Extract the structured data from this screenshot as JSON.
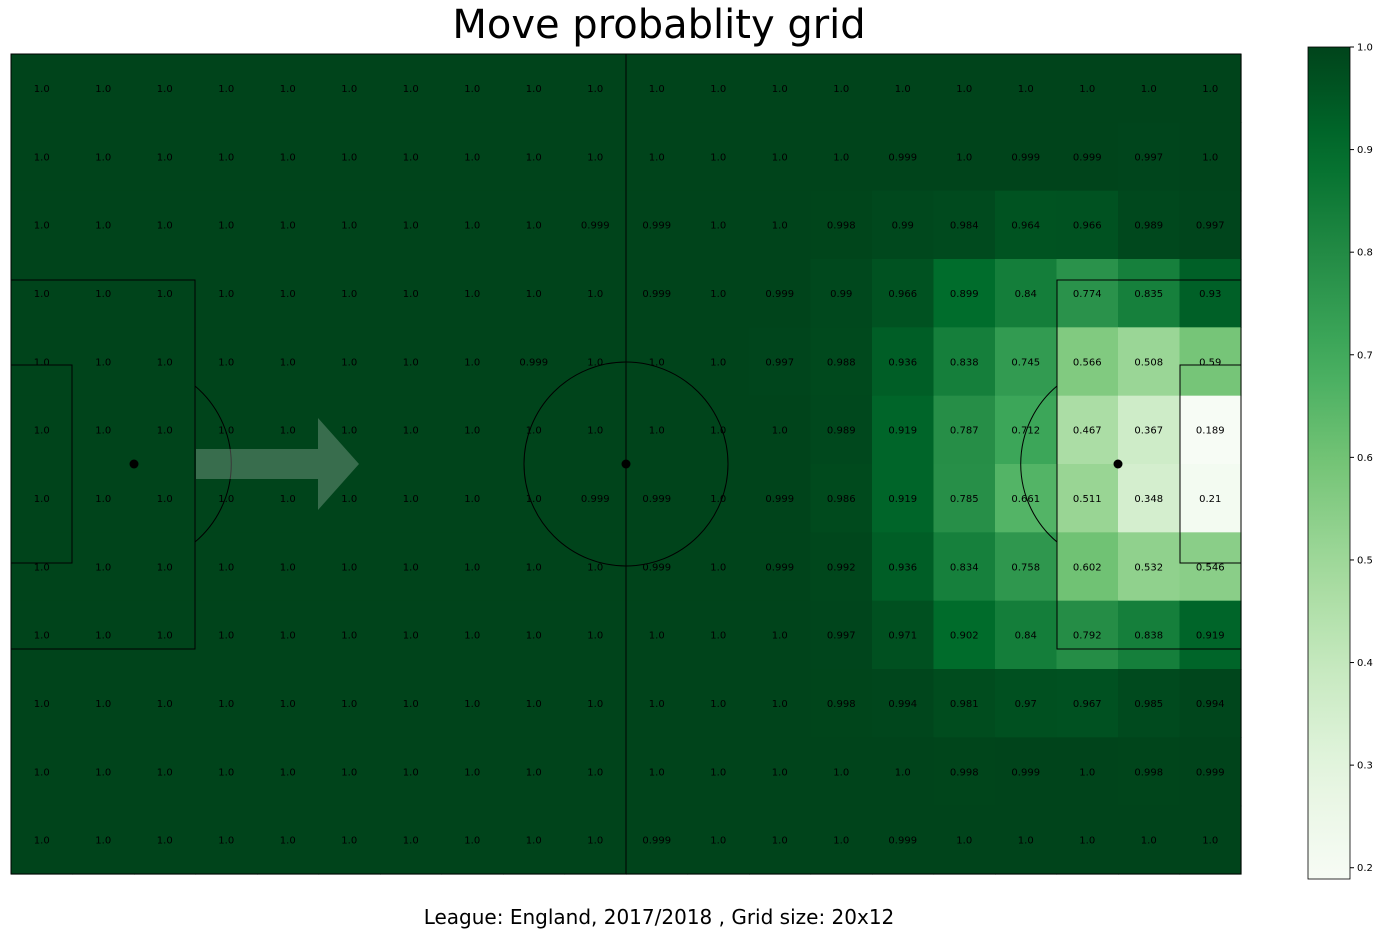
{
  "title": "Move probablity grid",
  "caption": "League: England, 2017/2018 , Grid size: 20x12",
  "chart_data": {
    "type": "heatmap",
    "title": "Move probablity grid",
    "grid_cols": 20,
    "grid_rows": 12,
    "colormap": "Greens",
    "colors": {
      "low": "#f7fcf5",
      "high": "#00441b"
    },
    "colorbar": {
      "ticks": [
        0.2,
        0.3,
        0.4,
        0.5,
        0.6,
        0.7,
        0.8,
        0.9,
        1.0
      ],
      "tick_labels": [
        "0.2",
        "0.3",
        "0.4",
        "0.5",
        "0.6",
        "0.7",
        "0.8",
        "0.9",
        "1.0"
      ],
      "range": [
        0.189,
        1.0
      ]
    },
    "values": [
      [
        1.0,
        1.0,
        1.0,
        1.0,
        1.0,
        1.0,
        1.0,
        1.0,
        1.0,
        1.0,
        1.0,
        1.0,
        1.0,
        1.0,
        1.0,
        1.0,
        1.0,
        1.0,
        1.0,
        1.0
      ],
      [
        1.0,
        1.0,
        1.0,
        1.0,
        1.0,
        1.0,
        1.0,
        1.0,
        1.0,
        1.0,
        1.0,
        1.0,
        1.0,
        1.0,
        0.999,
        1.0,
        0.999,
        0.999,
        0.997,
        1.0
      ],
      [
        1.0,
        1.0,
        1.0,
        1.0,
        1.0,
        1.0,
        1.0,
        1.0,
        1.0,
        0.999,
        0.999,
        1.0,
        1.0,
        0.998,
        0.99,
        0.984,
        0.964,
        0.966,
        0.989,
        0.997
      ],
      [
        1.0,
        1.0,
        1.0,
        1.0,
        1.0,
        1.0,
        1.0,
        1.0,
        1.0,
        1.0,
        0.999,
        1.0,
        0.999,
        0.99,
        0.966,
        0.899,
        0.84,
        0.774,
        0.835,
        0.93
      ],
      [
        1.0,
        1.0,
        1.0,
        1.0,
        1.0,
        1.0,
        1.0,
        1.0,
        0.999,
        1.0,
        1.0,
        1.0,
        0.997,
        0.988,
        0.936,
        0.838,
        0.745,
        0.566,
        0.508,
        0.59
      ],
      [
        1.0,
        1.0,
        1.0,
        1.0,
        1.0,
        1.0,
        1.0,
        1.0,
        1.0,
        1.0,
        1.0,
        1.0,
        1.0,
        0.989,
        0.919,
        0.787,
        0.712,
        0.467,
        0.367,
        0.189
      ],
      [
        1.0,
        1.0,
        1.0,
        1.0,
        1.0,
        1.0,
        1.0,
        1.0,
        1.0,
        0.999,
        0.999,
        1.0,
        0.999,
        0.986,
        0.919,
        0.785,
        0.661,
        0.511,
        0.348,
        0.21
      ],
      [
        1.0,
        1.0,
        1.0,
        1.0,
        1.0,
        1.0,
        1.0,
        1.0,
        1.0,
        1.0,
        0.999,
        1.0,
        0.999,
        0.992,
        0.936,
        0.834,
        0.758,
        0.602,
        0.532,
        0.546
      ],
      [
        1.0,
        1.0,
        1.0,
        1.0,
        1.0,
        1.0,
        1.0,
        1.0,
        1.0,
        1.0,
        1.0,
        1.0,
        1.0,
        0.997,
        0.971,
        0.902,
        0.84,
        0.792,
        0.838,
        0.919
      ],
      [
        1.0,
        1.0,
        1.0,
        1.0,
        1.0,
        1.0,
        1.0,
        1.0,
        1.0,
        1.0,
        1.0,
        1.0,
        1.0,
        0.998,
        0.994,
        0.981,
        0.97,
        0.967,
        0.985,
        0.994
      ],
      [
        1.0,
        1.0,
        1.0,
        1.0,
        1.0,
        1.0,
        1.0,
        1.0,
        1.0,
        1.0,
        1.0,
        1.0,
        1.0,
        1.0,
        1.0,
        0.998,
        0.999,
        1.0,
        0.998,
        0.999
      ],
      [
        1.0,
        1.0,
        1.0,
        1.0,
        1.0,
        1.0,
        1.0,
        1.0,
        1.0,
        1.0,
        0.999,
        1.0,
        1.0,
        1.0,
        0.999,
        1.0,
        1.0,
        1.0,
        1.0,
        1.0
      ]
    ]
  }
}
